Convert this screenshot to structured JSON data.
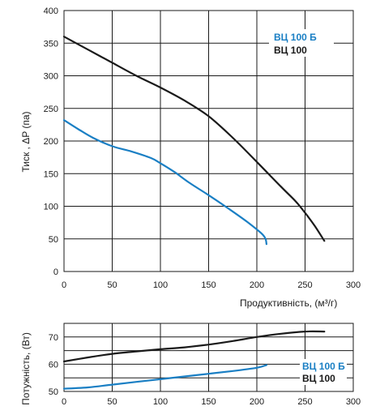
{
  "colors": {
    "series_dark": "#1a1a1a",
    "series_blue": "#1a7fc4",
    "grid": "#1a1a1a",
    "axis_text": "#1a1a1a"
  },
  "chart_data": [
    {
      "type": "line",
      "xlabel": "Продуктивність",
      "xlabel_unit": ", (м³/г)",
      "ylabel": "Тиск , ΔP (па)",
      "xlim": [
        0,
        300
      ],
      "ylim": [
        0,
        400
      ],
      "x_ticks": [
        "0",
        "50",
        "100",
        "150",
        "200",
        "250",
        "300"
      ],
      "y_ticks": [
        "0",
        "50",
        "100",
        "150",
        "200",
        "250",
        "300",
        "350",
        "400"
      ],
      "grid": "on",
      "legend": [
        "ВЦ 100 Б",
        "ВЦ 100"
      ],
      "legend_position": "top-right",
      "series": [
        {
          "name": "ВЦ 100 Б",
          "color": "#1a7fc4",
          "x": [
            0,
            15,
            30,
            50,
            70,
            90,
            100,
            115,
            130,
            150,
            170,
            190,
            205,
            209,
            210
          ],
          "y": [
            232,
            218,
            205,
            192,
            184,
            174,
            166,
            152,
            136,
            117,
            97,
            76,
            58,
            50,
            42
          ]
        },
        {
          "name": "ВЦ 100",
          "color": "#1a1a1a",
          "x": [
            0,
            25,
            50,
            75,
            100,
            125,
            150,
            175,
            200,
            225,
            240,
            250,
            260,
            270
          ],
          "y": [
            360,
            340,
            320,
            300,
            282,
            262,
            238,
            205,
            168,
            130,
            108,
            90,
            70,
            47
          ]
        }
      ]
    },
    {
      "type": "line",
      "ylabel": "Потужність, (Вт)",
      "xlim": [
        0,
        300
      ],
      "ylim": [
        50,
        75
      ],
      "x_ticks": [
        "0",
        "50",
        "100",
        "150",
        "200",
        "250",
        "300"
      ],
      "y_ticks": [
        "50",
        "60",
        "70"
      ],
      "grid": "on",
      "legend": [
        "ВЦ 100 Б",
        "ВЦ 100"
      ],
      "legend_position": "bottom-right",
      "series": [
        {
          "name": "ВЦ 100 Б",
          "color": "#1a7fc4",
          "x": [
            0,
            25,
            50,
            75,
            100,
            125,
            150,
            175,
            200,
            210
          ],
          "y": [
            51,
            51.5,
            52.5,
            53.5,
            54.5,
            55.5,
            56.5,
            57.5,
            58.7,
            59.7
          ]
        },
        {
          "name": "ВЦ 100",
          "color": "#1a1a1a",
          "x": [
            0,
            25,
            50,
            75,
            100,
            125,
            150,
            175,
            200,
            225,
            250,
            270
          ],
          "y": [
            61,
            62.5,
            63.8,
            64.7,
            65.5,
            66.2,
            67.2,
            68.5,
            70,
            71.2,
            72,
            72
          ]
        }
      ]
    }
  ]
}
